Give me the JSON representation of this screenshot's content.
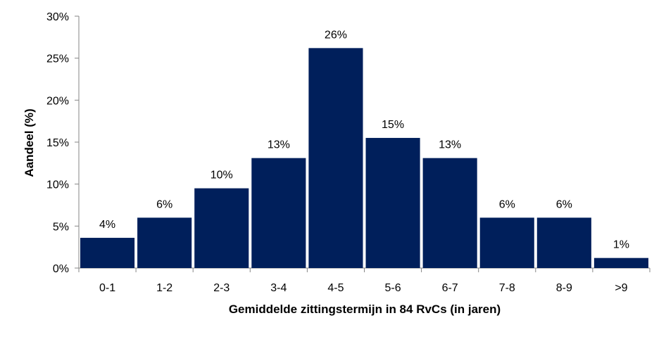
{
  "chart_data": {
    "type": "bar",
    "title": "",
    "xlabel": "Gemiddelde zittingstermijn  in 84 RvCs (in jaren)",
    "ylabel": "Aandeel (%)",
    "categories": [
      "0-1",
      "1-2",
      "2-3",
      "3-4",
      "4-5",
      "5-6",
      "6-7",
      "7-8",
      "8-9",
      ">9"
    ],
    "values": [
      3.6,
      6.0,
      9.5,
      13.1,
      26.2,
      15.5,
      13.1,
      6.0,
      6.0,
      1.2
    ],
    "data_labels": [
      "4%",
      "6%",
      "10%",
      "13%",
      "26%",
      "15%",
      "13%",
      "6%",
      "6%",
      "1%"
    ],
    "ylim": [
      0,
      30
    ],
    "yticks": [
      0,
      5,
      10,
      15,
      20,
      25,
      30
    ],
    "ytick_labels": [
      "0%",
      "5%",
      "10%",
      "15%",
      "20%",
      "25%",
      "30%"
    ],
    "bar_color": "#001F5B",
    "grid": false,
    "legend": "none"
  }
}
